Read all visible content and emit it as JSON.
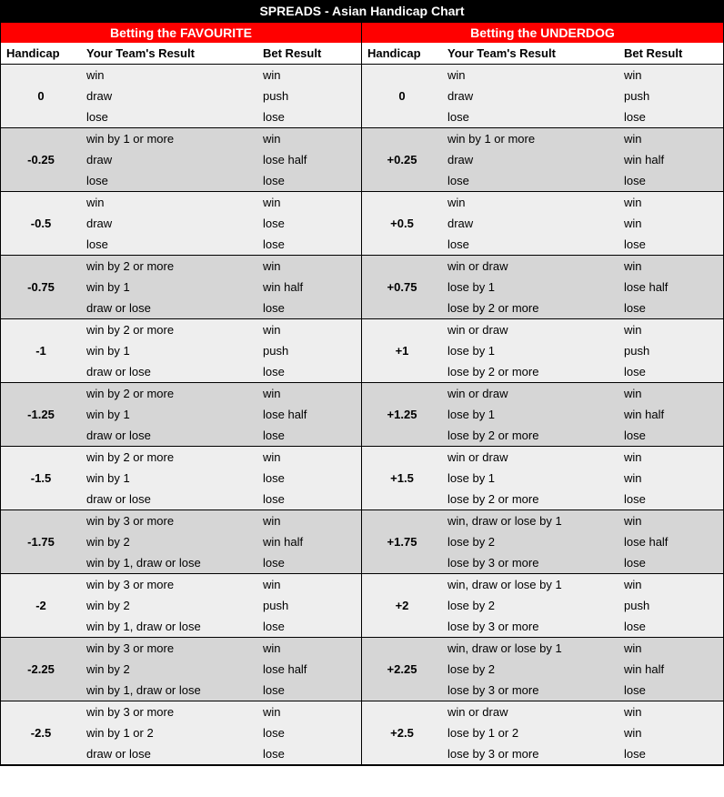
{
  "title": "SPREADS - Asian Handicap Chart",
  "sections": {
    "favourite": "Betting the FAVOURITE",
    "underdog": "Betting the UNDERDOG"
  },
  "headers": {
    "handicap": "Handicap",
    "team_result": "Your Team's Result",
    "bet_result": "Bet Result"
  },
  "colors": {
    "title_bg": "#000000",
    "title_fg": "#ffffff",
    "section_bg": "#ff0000",
    "section_fg": "#ffffff",
    "shade_light": "#eeeeee",
    "shade_dark": "#d6d6d6",
    "border": "#000000",
    "text": "#000000"
  },
  "groups": [
    {
      "shade": "light",
      "fav": {
        "handicap": "0",
        "rows": [
          {
            "result": "win",
            "bet": "win"
          },
          {
            "result": "draw",
            "bet": "push"
          },
          {
            "result": "lose",
            "bet": "lose"
          }
        ]
      },
      "und": {
        "handicap": "0",
        "rows": [
          {
            "result": "win",
            "bet": "win"
          },
          {
            "result": "draw",
            "bet": "push"
          },
          {
            "result": "lose",
            "bet": "lose"
          }
        ]
      }
    },
    {
      "shade": "dark",
      "fav": {
        "handicap": "-0.25",
        "rows": [
          {
            "result": "win by 1 or more",
            "bet": "win"
          },
          {
            "result": "draw",
            "bet": "lose half"
          },
          {
            "result": "lose",
            "bet": "lose"
          }
        ]
      },
      "und": {
        "handicap": "+0.25",
        "rows": [
          {
            "result": "win by 1 or more",
            "bet": "win"
          },
          {
            "result": "draw",
            "bet": "win half"
          },
          {
            "result": "lose",
            "bet": "lose"
          }
        ]
      }
    },
    {
      "shade": "light",
      "fav": {
        "handicap": "-0.5",
        "rows": [
          {
            "result": "win",
            "bet": "win"
          },
          {
            "result": "draw",
            "bet": "lose"
          },
          {
            "result": "lose",
            "bet": "lose"
          }
        ]
      },
      "und": {
        "handicap": "+0.5",
        "rows": [
          {
            "result": "win",
            "bet": "win"
          },
          {
            "result": "draw",
            "bet": "win"
          },
          {
            "result": "lose",
            "bet": "lose"
          }
        ]
      }
    },
    {
      "shade": "dark",
      "fav": {
        "handicap": "-0.75",
        "rows": [
          {
            "result": "win by 2 or more",
            "bet": "win"
          },
          {
            "result": "win by 1",
            "bet": "win half"
          },
          {
            "result": "draw or lose",
            "bet": "lose"
          }
        ]
      },
      "und": {
        "handicap": "+0.75",
        "rows": [
          {
            "result": "win or draw",
            "bet": "win"
          },
          {
            "result": "lose by 1",
            "bet": "lose half"
          },
          {
            "result": "lose by 2 or more",
            "bet": "lose"
          }
        ]
      }
    },
    {
      "shade": "light",
      "fav": {
        "handicap": "-1",
        "rows": [
          {
            "result": "win by 2 or more",
            "bet": "win"
          },
          {
            "result": "win by 1",
            "bet": "push"
          },
          {
            "result": "draw or lose",
            "bet": "lose"
          }
        ]
      },
      "und": {
        "handicap": "+1",
        "rows": [
          {
            "result": "win or draw",
            "bet": "win"
          },
          {
            "result": "lose by 1",
            "bet": "push"
          },
          {
            "result": "lose by 2 or more",
            "bet": "lose"
          }
        ]
      }
    },
    {
      "shade": "dark",
      "fav": {
        "handicap": "-1.25",
        "rows": [
          {
            "result": "win by 2 or more",
            "bet": "win"
          },
          {
            "result": "win by 1",
            "bet": "lose half"
          },
          {
            "result": "draw or lose",
            "bet": "lose"
          }
        ]
      },
      "und": {
        "handicap": "+1.25",
        "rows": [
          {
            "result": "win or draw",
            "bet": "win"
          },
          {
            "result": "lose by 1",
            "bet": "win half"
          },
          {
            "result": "lose by 2 or more",
            "bet": "lose"
          }
        ]
      }
    },
    {
      "shade": "light",
      "fav": {
        "handicap": "-1.5",
        "rows": [
          {
            "result": "win by 2 or more",
            "bet": "win"
          },
          {
            "result": "win by 1",
            "bet": "lose"
          },
          {
            "result": "draw or lose",
            "bet": "lose"
          }
        ]
      },
      "und": {
        "handicap": "+1.5",
        "rows": [
          {
            "result": "win or draw",
            "bet": "win"
          },
          {
            "result": "lose by 1",
            "bet": "win"
          },
          {
            "result": "lose by 2 or more",
            "bet": "lose"
          }
        ]
      }
    },
    {
      "shade": "dark",
      "fav": {
        "handicap": "-1.75",
        "rows": [
          {
            "result": "win by 3 or more",
            "bet": "win"
          },
          {
            "result": "win by 2",
            "bet": "win half"
          },
          {
            "result": "win by 1, draw or lose",
            "bet": "lose"
          }
        ]
      },
      "und": {
        "handicap": "+1.75",
        "rows": [
          {
            "result": "win, draw or lose by 1",
            "bet": "win"
          },
          {
            "result": "lose by 2",
            "bet": "lose half"
          },
          {
            "result": "lose by 3 or more",
            "bet": "lose"
          }
        ]
      }
    },
    {
      "shade": "light",
      "fav": {
        "handicap": "-2",
        "rows": [
          {
            "result": "win by 3 or more",
            "bet": "win"
          },
          {
            "result": "win by 2",
            "bet": "push"
          },
          {
            "result": "win by 1, draw or lose",
            "bet": "lose"
          }
        ]
      },
      "und": {
        "handicap": "+2",
        "rows": [
          {
            "result": "win, draw or lose by 1",
            "bet": "win"
          },
          {
            "result": "lose by 2",
            "bet": "push"
          },
          {
            "result": "lose by 3 or more",
            "bet": "lose"
          }
        ]
      }
    },
    {
      "shade": "dark",
      "fav": {
        "handicap": "-2.25",
        "rows": [
          {
            "result": "win by 3 or more",
            "bet": "win"
          },
          {
            "result": "win by 2",
            "bet": "lose half"
          },
          {
            "result": "win by 1, draw or lose",
            "bet": "lose"
          }
        ]
      },
      "und": {
        "handicap": "+2.25",
        "rows": [
          {
            "result": "win, draw or lose by 1",
            "bet": "win"
          },
          {
            "result": "lose by 2",
            "bet": "win half"
          },
          {
            "result": "lose by 3 or more",
            "bet": "lose"
          }
        ]
      }
    },
    {
      "shade": "light",
      "fav": {
        "handicap": "-2.5",
        "rows": [
          {
            "result": "win by 3 or more",
            "bet": "win"
          },
          {
            "result": "win by 1 or 2",
            "bet": "lose"
          },
          {
            "result": "draw or lose",
            "bet": "lose"
          }
        ]
      },
      "und": {
        "handicap": "+2.5",
        "rows": [
          {
            "result": "win or draw",
            "bet": "win"
          },
          {
            "result": "lose by 1 or 2",
            "bet": "win"
          },
          {
            "result": "lose by 3 or more",
            "bet": "lose"
          }
        ]
      }
    }
  ]
}
